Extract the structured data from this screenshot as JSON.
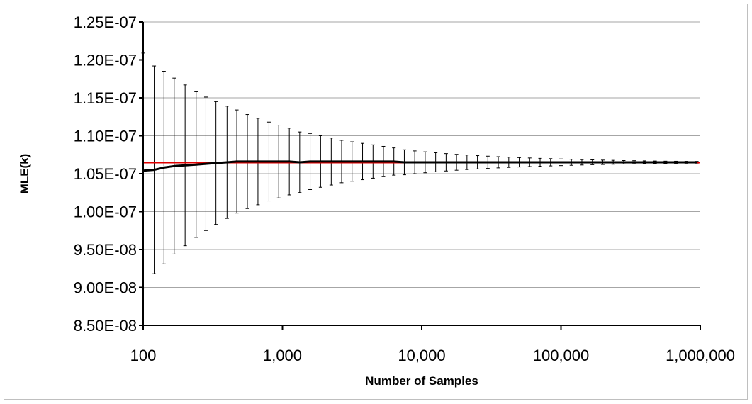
{
  "chart_data": {
    "type": "line",
    "title": "",
    "xlabel": "Number of Samples",
    "ylabel": "MLE(k)",
    "x_scale": "log",
    "xlim": [
      100,
      1000000
    ],
    "ylim": [
      8.5e-08,
      1.25e-07
    ],
    "x_tick_values": [
      100,
      1000,
      10000,
      100000,
      1000000
    ],
    "x_tick_labels": [
      "100",
      "1,000",
      "10,000",
      "100,000",
      "1,000,000"
    ],
    "y_tick_values": [
      8.5e-08,
      9e-08,
      9.5e-08,
      1e-07,
      1.05e-07,
      1.1e-07,
      1.15e-07,
      1.2e-07,
      1.25e-07
    ],
    "y_tick_labels": [
      "8.50E-08",
      "9.00E-08",
      "9.50E-08",
      "1.00E-07",
      "1.05E-07",
      "1.10E-07",
      "1.15E-07",
      "1.20E-07",
      "1.25E-07"
    ],
    "grid": "horizontal",
    "legend": "none",
    "series": [
      {
        "role": "estimate with error bars",
        "color": "#000000",
        "x": [
          100,
          120,
          141,
          167,
          200,
          240,
          282,
          333,
          400,
          470,
          560,
          667,
          800,
          940,
          1120,
          1330,
          1580,
          1880,
          2240,
          2660,
          3160,
          3760,
          4470,
          5310,
          6310,
          7500,
          8910,
          10590,
          12590,
          14960,
          17780,
          21130,
          25120,
          29850,
          35480,
          42170,
          50120,
          59570,
          70790,
          84140,
          100000,
          118850,
          141250,
          167880,
          199530,
          237140,
          281840,
          334970,
          398110,
          473150,
          562340,
          668340,
          794330,
          944060
        ],
        "y": [
          1.054e-07,
          1.055e-07,
          1.058e-07,
          1.06e-07,
          1.061e-07,
          1.062e-07,
          1.063e-07,
          1.064e-07,
          1.065e-07,
          1.066e-07,
          1.066e-07,
          1.066e-07,
          1.066e-07,
          1.066e-07,
          1.066e-07,
          1.065e-07,
          1.066e-07,
          1.066e-07,
          1.066e-07,
          1.066e-07,
          1.066e-07,
          1.066e-07,
          1.066e-07,
          1.066e-07,
          1.066e-07,
          1.065e-07,
          1.065e-07,
          1.065e-07,
          1.065e-07,
          1.065e-07,
          1.065e-07,
          1.065e-07,
          1.065e-07,
          1.065e-07,
          1.065e-07,
          1.065e-07,
          1.065e-07,
          1.065e-07,
          1.065e-07,
          1.065e-07,
          1.065e-07,
          1.065e-07,
          1.065e-07,
          1.065e-07,
          1.065e-07,
          1.065e-07,
          1.065e-07,
          1.065e-07,
          1.065e-07,
          1.065e-07,
          1.065e-07,
          1.065e-07,
          1.065e-07,
          1.065e-07
        ],
        "error": [
          1.55e-08,
          1.37e-08,
          1.27e-08,
          1.16e-08,
          1.06e-08,
          9.6e-09,
          8.8e-09,
          8.1e-09,
          7.4e-09,
          6.8e-09,
          6.2e-09,
          5.7e-09,
          5.2e-09,
          4.8e-09,
          4.4e-09,
          4e-09,
          3.7e-09,
          3.4e-09,
          3.1e-09,
          2.8e-09,
          2.6e-09,
          2.4e-09,
          2.2e-09,
          2e-09,
          1.8e-09,
          1.65e-09,
          1.5e-09,
          1.38e-09,
          1.26e-09,
          1.15e-09,
          1.05e-09,
          9.6e-10,
          8.8e-10,
          8.1e-10,
          7.4e-10,
          6.8e-10,
          6.2e-10,
          5.7e-10,
          5.2e-10,
          4.8e-10,
          4.4e-10,
          4e-10,
          3.6e-10,
          3.2e-10,
          2.9e-10,
          2.6e-10,
          2.3e-10,
          2.1e-10,
          1.9e-10,
          1.7e-10,
          1.5e-10,
          1.4e-10,
          1.3e-10,
          1.2e-10
        ]
      },
      {
        "role": "reference value",
        "color": "#e00000",
        "y_constant": 1.0645e-07
      }
    ]
  }
}
